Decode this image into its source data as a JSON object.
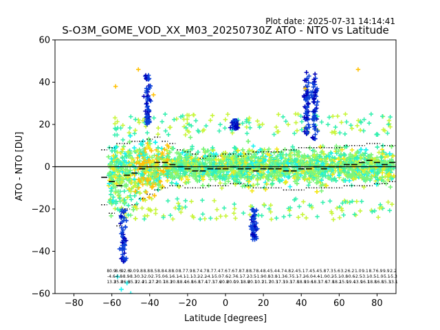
{
  "chart_data": {
    "type": "scatter",
    "plot_date": "Plot date: 2025-07-31 14:14:41",
    "title": "S-O3M_GOME_VOD_XX_M03_20250730Z ATO - NTO vs Latitude",
    "xlabel": "Latitude [degrees]",
    "ylabel": "ATO - NTO [DU]",
    "xlim": [
      -90,
      90
    ],
    "ylim": [
      -60,
      60
    ],
    "xticks": [
      -80,
      -60,
      -40,
      -20,
      0,
      20,
      40,
      60,
      80
    ],
    "xtick_labels": [
      "−80",
      "−60",
      "−40",
      "−20",
      "0",
      "20",
      "40",
      "60",
      "80"
    ],
    "yticks": [
      -60,
      -40,
      -20,
      0,
      20,
      40,
      60
    ],
    "ytick_labels": [
      "−60",
      "−40",
      "−20",
      "0",
      "20",
      "40",
      "60"
    ],
    "grid": false,
    "zero_line": 0,
    "marker": "+",
    "colormap_note": "points colored by a jet-like colormap (blue-cyan-green-yellow-orange)",
    "lat_bins": [
      -64,
      -60,
      -56,
      -52,
      -48,
      -44,
      -40,
      -36,
      -32,
      -28,
      -24,
      -20,
      -16,
      -12,
      -8,
      -4,
      0,
      4,
      8,
      12,
      16,
      20,
      24,
      28,
      32,
      36,
      40,
      44,
      48,
      52,
      56,
      60,
      64,
      68,
      72,
      76,
      80,
      84,
      88
    ],
    "bin_mean": [
      -5,
      -7,
      -9,
      -4,
      -3,
      -1,
      0,
      2,
      2,
      1,
      0,
      -1,
      -2,
      -2,
      -1,
      -1,
      -1,
      0,
      -1,
      -1,
      -2,
      -1,
      -1,
      -1,
      -2,
      -2,
      -1,
      -1,
      0,
      -1,
      0,
      0,
      1,
      1,
      2,
      3,
      2,
      1,
      2
    ],
    "bin_plus_std": [
      8,
      9,
      11,
      11,
      12,
      12,
      13,
      14,
      12,
      11,
      8,
      7,
      6,
      4,
      5,
      5,
      6,
      6,
      5,
      6,
      7,
      7,
      7,
      7,
      8,
      8,
      9,
      9,
      9,
      9,
      9,
      9,
      10,
      10,
      10,
      11,
      11,
      10,
      10
    ],
    "bin_minus_std": [
      -18,
      -22,
      -28,
      -20,
      -18,
      -15,
      -13,
      -11,
      -10,
      -9,
      -9,
      -10,
      -10,
      -10,
      -9,
      -9,
      -9,
      -8,
      -8,
      -9,
      -10,
      -10,
      -10,
      -10,
      -11,
      -11,
      -11,
      -10,
      -10,
      -10,
      -10,
      -10,
      -9,
      -9,
      -9,
      -9,
      -8,
      -8,
      -7
    ],
    "bin_stat_labels": [
      [
        "80.9",
        "-4.6",
        "13.3"
      ],
      [
        "8.6",
        "-4.8",
        "25.8"
      ],
      [
        "92.6",
        "-8.9",
        "26.6"
      ],
      [
        "9.0",
        "-8.3",
        "35.3"
      ],
      [
        "9.8",
        "-0.3",
        "22.4"
      ],
      [
        "8.8",
        "-2.0",
        "21.2"
      ],
      [
        "8.5",
        "-2.7",
        "17.2"
      ],
      [
        "8.8",
        "-5.0",
        "20.7"
      ],
      [
        "4.8",
        "-6.1",
        "18.3"
      ],
      [
        "8.0",
        "-6.1",
        "20.8"
      ],
      [
        "8.7",
        "-4.1",
        "18.4"
      ],
      [
        "7.9",
        "-1.1",
        "16.8"
      ],
      [
        "8.7",
        "-3.2",
        "16.8"
      ],
      [
        "4.7",
        "-2.2",
        "17.4"
      ],
      [
        "8.7",
        "-4.1",
        "17.3"
      ],
      [
        "7.4",
        "-5.0",
        "17.6"
      ],
      [
        "7.6",
        "-7.6",
        "20.8"
      ],
      [
        "7.6",
        "-2.7",
        "20.0"
      ],
      [
        "7.8",
        "-6.1",
        "19.1"
      ],
      [
        "7.8",
        "-7.2",
        "18.8"
      ],
      [
        "8.7",
        "-3.5",
        "20.1"
      ],
      [
        "8.4",
        "-1.9",
        "10.1"
      ],
      [
        "8.4",
        "-0.8",
        "21.7"
      ],
      [
        "5.4",
        "-3.8",
        "20.3"
      ],
      [
        "4.7",
        "-1.3",
        "17.3"
      ],
      [
        "4.8",
        "-6.7",
        "19.3"
      ],
      [
        "2.4",
        "-5.1",
        "17.8"
      ],
      [
        "5.1",
        "-7.2",
        "18.8"
      ],
      [
        "7.4",
        "-6.0",
        "19.6"
      ],
      [
        "5.4",
        "-4.4",
        "18.3"
      ],
      [
        "5.8",
        "-1.0",
        "17.6"
      ],
      [
        "7.3",
        "-0.2",
        "17.8"
      ],
      [
        "5.6",
        "-5.1",
        "18.2"
      ],
      [
        "3.2",
        "-0.8",
        "15.9"
      ],
      [
        "6.2",
        "-0.6",
        "19.4"
      ],
      [
        "1.0",
        "-2.5",
        "13.9"
      ],
      [
        "9.1",
        "-3.1",
        "16.1"
      ],
      [
        "8.7",
        "-0.5",
        "18.8"
      ],
      [
        "6.9",
        "-1.0",
        "16.8"
      ],
      [
        "9.9",
        "-5.1",
        "15.3"
      ],
      [
        "2.2",
        "-5.3",
        "13.1"
      ]
    ],
    "colors": {
      "blue": "#0a3fd8",
      "cyan": "#18f3f0",
      "aqua_green": "#37f0b0",
      "green": "#7cf57a",
      "yellow_green": "#c8f53c",
      "yellow": "#f5e71a",
      "orange": "#ffc20a",
      "dark_blue": "#0000b8"
    }
  }
}
